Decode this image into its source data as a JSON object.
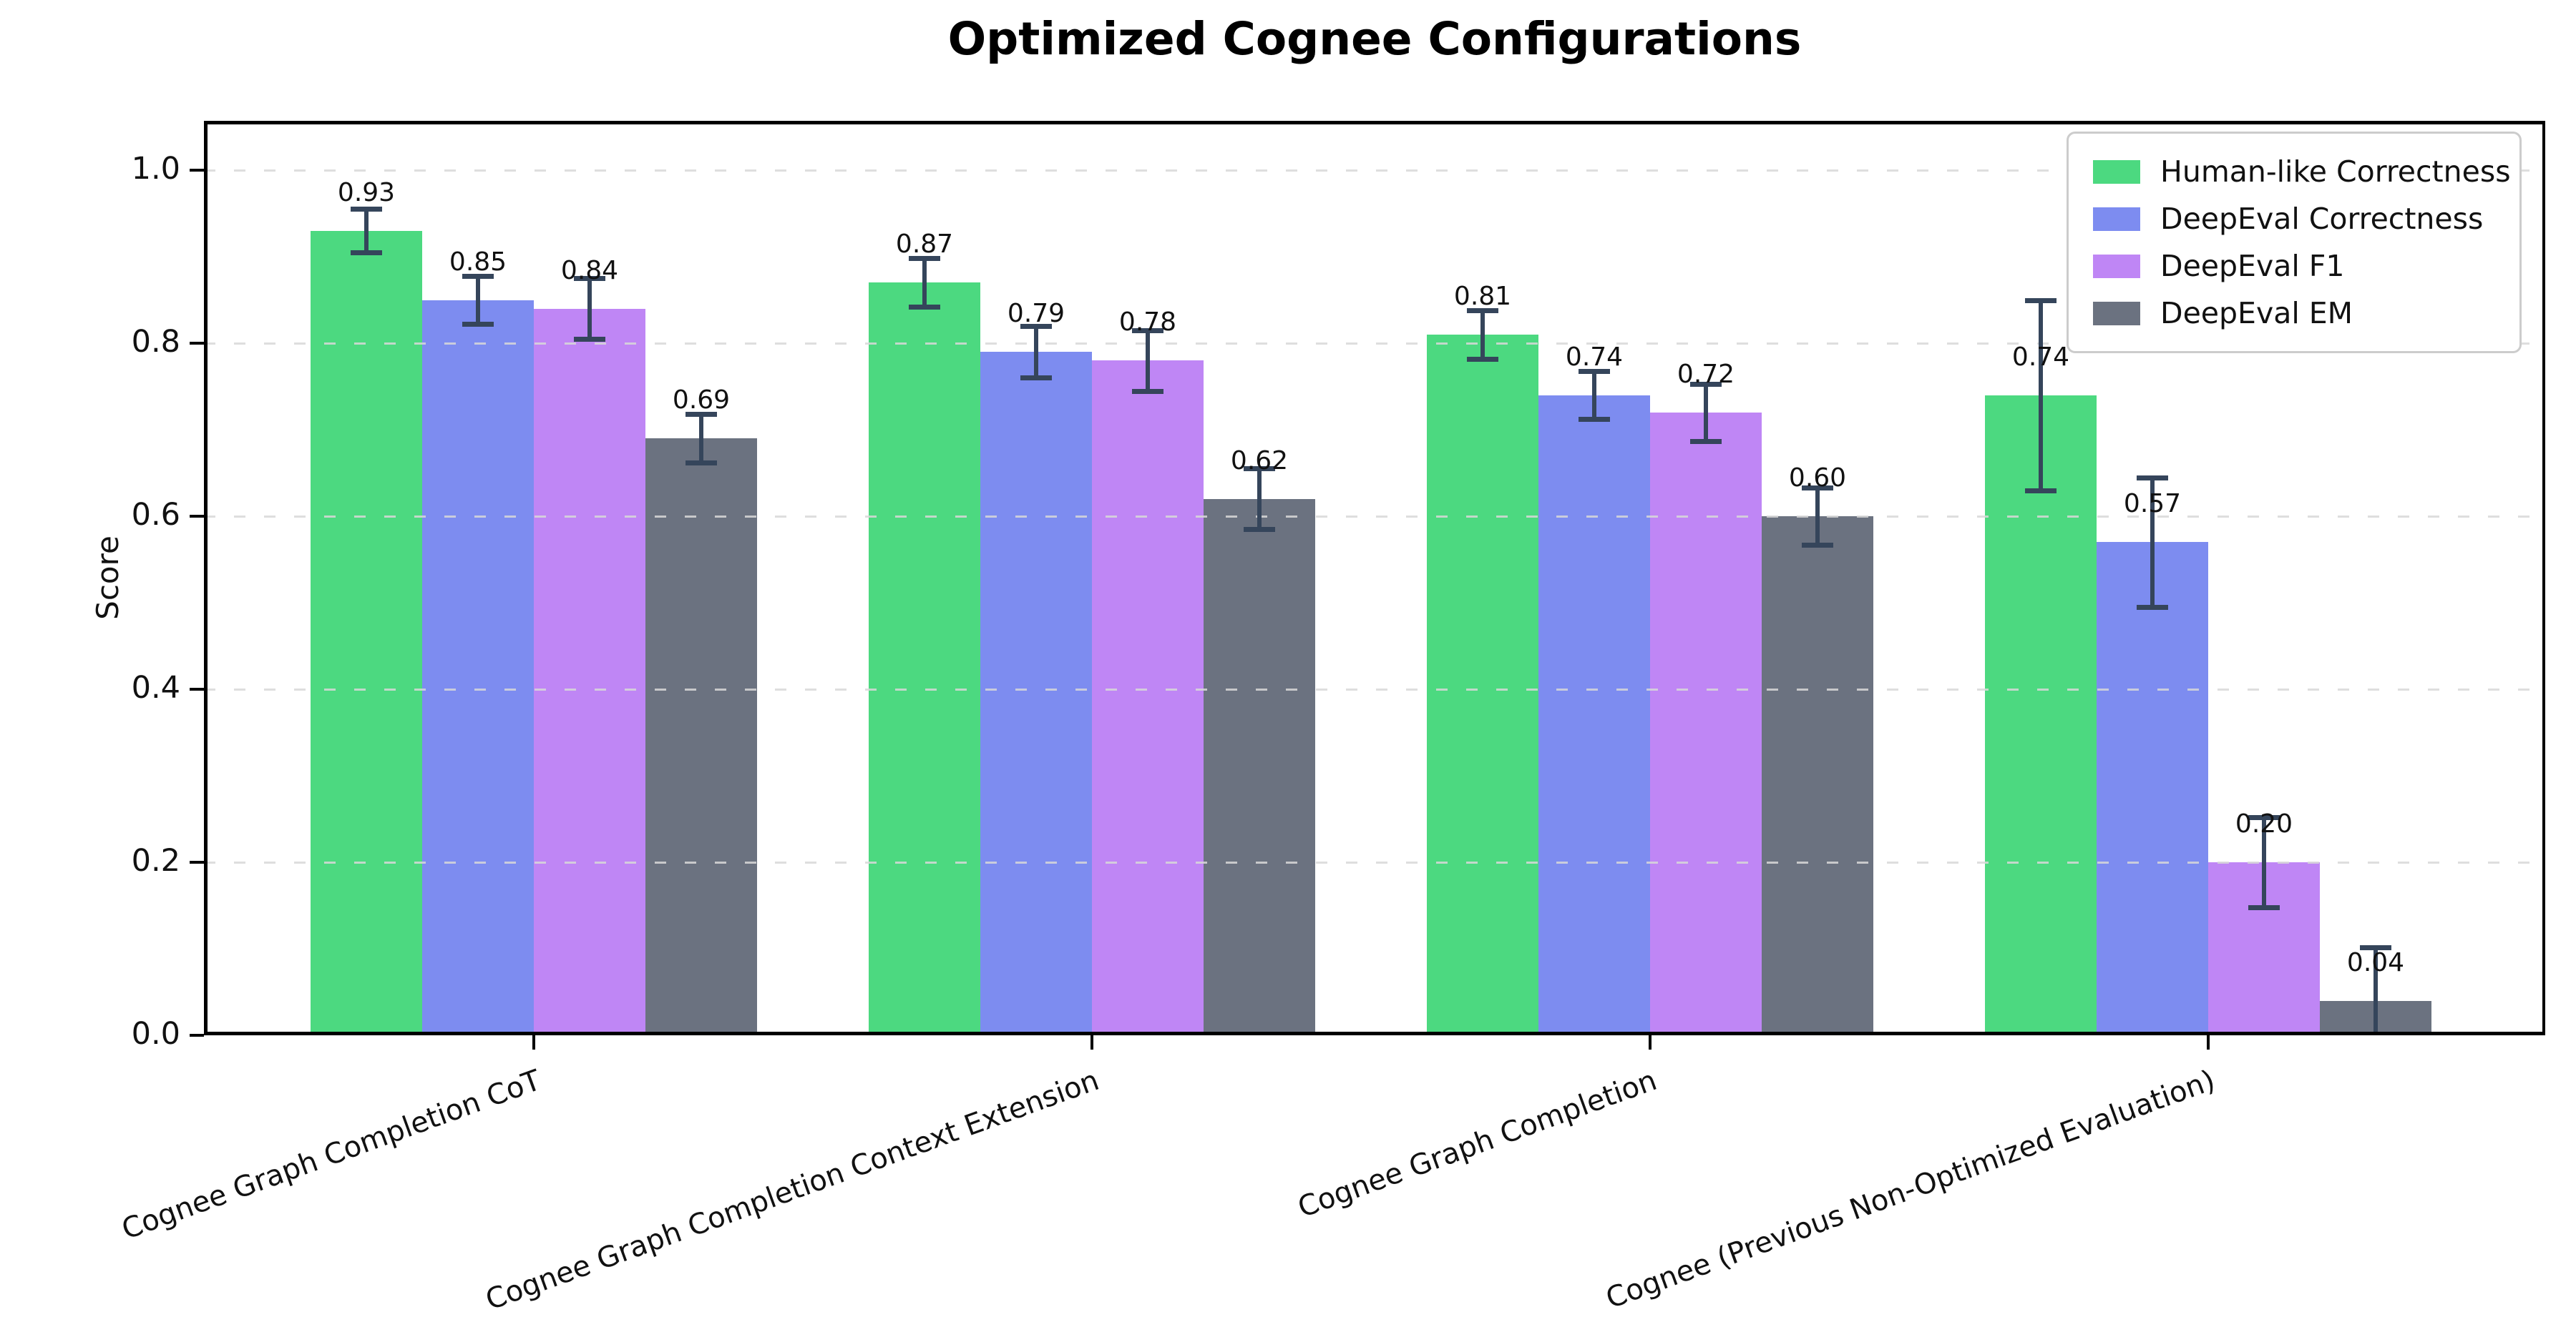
{
  "figure": {
    "background": "#ffffff"
  },
  "chart_data": {
    "type": "bar",
    "title": "Optimized Cognee Configurations",
    "xlabel": "",
    "ylabel": "Score",
    "ylim": [
      0,
      1.06
    ],
    "yticks": [
      "0.0",
      "0.2",
      "0.4",
      "0.6",
      "0.8",
      "1.0"
    ],
    "grid": "horizontal-dashed",
    "legend_position": "upper-right",
    "categories": [
      "Cognee Graph Completion CoT",
      "Cognee Graph Completion Context Extension",
      "Cognee Graph Completion",
      "Cognee (Previous Non-Optimized Evaluation)"
    ],
    "series": [
      {
        "name": "Human-like Correctness",
        "color": "#4cd980",
        "values": [
          0.93,
          0.87,
          0.81,
          0.74
        ],
        "errors": [
          0.025,
          0.028,
          0.028,
          0.11
        ]
      },
      {
        "name": "DeepEval Correctness",
        "color": "#7d8cf0",
        "values": [
          0.85,
          0.79,
          0.74,
          0.57
        ],
        "errors": [
          0.028,
          0.03,
          0.028,
          0.075
        ]
      },
      {
        "name": "DeepEval F1",
        "color": "#bf86f5",
        "values": [
          0.84,
          0.78,
          0.72,
          0.2
        ],
        "errors": [
          0.035,
          0.035,
          0.033,
          0.052
        ]
      },
      {
        "name": "DeepEval EM",
        "color": "#6b7280",
        "values": [
          0.69,
          0.62,
          0.6,
          0.04
        ],
        "errors": [
          0.028,
          0.035,
          0.033,
          0.062
        ]
      }
    ],
    "bar_value_labels": [
      [
        "0.93",
        "0.85",
        "0.84",
        "0.69"
      ],
      [
        "0.87",
        "0.79",
        "0.78",
        "0.62"
      ],
      [
        "0.81",
        "0.74",
        "0.72",
        "0.60"
      ],
      [
        "0.74",
        "0.57",
        "0.20",
        "0.04"
      ]
    ],
    "colors": {
      "error_bar": "#35455b",
      "gridline": "#d8d8d8",
      "axis": "#000000",
      "text": "#111111"
    }
  }
}
